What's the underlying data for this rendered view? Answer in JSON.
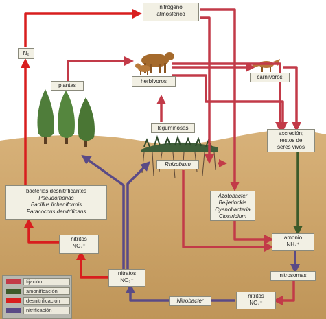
{
  "nodes": {
    "nitrogeno_atmosferico": [
      "nitrógeno",
      "atmosférico"
    ],
    "n2": "N₂",
    "plantas": "plantas",
    "herbivoros": "herbívoros",
    "carnivoros": "carnívoros",
    "leguminosas": "leguminosas",
    "rhizobium": "Rhizobium",
    "excrecion": [
      "excreción;",
      "restos de",
      "seres vivos"
    ],
    "bacterias_desnitrificantes": [
      "bacterias desnitrificantes",
      "Pseudomonas",
      "Bacillus licheniformis",
      "Paracoccus denitrificans"
    ],
    "fijadores": [
      "Azotobacter",
      "Beijerinckia",
      "Cyanobacteria",
      "Clostridium"
    ],
    "amonio": [
      "amonio",
      "NH₄⁺"
    ],
    "nitrosomas": "nitrosomas",
    "nitritos_izq": [
      "nitritos",
      "NO₂⁻"
    ],
    "nitratos": [
      "nitratos",
      "NO₃⁻"
    ],
    "nitrobacter": "Nitrobacter",
    "nitritos_der": [
      "nitritos",
      "NO₂⁻"
    ]
  },
  "legend": [
    {
      "label": "fijación",
      "color": "#c23a48"
    },
    {
      "label": "amonificación",
      "color": "#3d5a2a"
    },
    {
      "label": "desnitrificación",
      "color": "#d81e1e"
    },
    {
      "label": "nitrificación",
      "color": "#5a4a86"
    }
  ],
  "colors": {
    "sky": "#ffffff",
    "soil": "#c9a36c",
    "fijacion": "#c23a48",
    "amonificacion": "#3d5a2a",
    "desnitrificacion": "#d81e1e",
    "nitrificacion": "#5a4a86",
    "tree": "#4f7d3a",
    "animal": "#a56a2c"
  },
  "icons": [
    "tree-icon",
    "cow-icon",
    "calf-icon",
    "fox-icon",
    "legume-plant-icon"
  ]
}
